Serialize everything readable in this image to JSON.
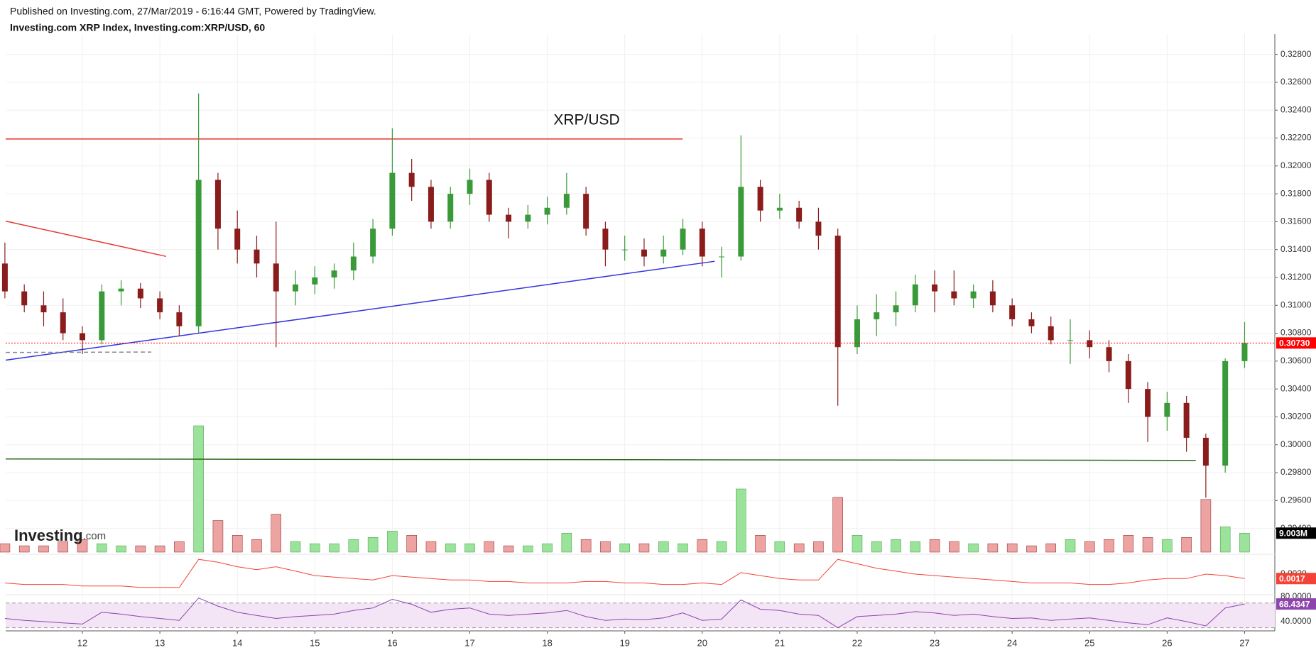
{
  "chart_data": {
    "type": "candlestick",
    "published": "Published on Investing.com, 27/Mar/2019 - 6:16:44 GMT, Powered by TradingView.",
    "title": "Investing.com XRP Index, Investing.com:XRP/USD, 60",
    "annotation": "XRP/USD",
    "watermark": {
      "name": "Investing",
      "suffix": ".com"
    },
    "x": [
      11.0,
      11.25,
      11.5,
      11.75,
      12.0,
      12.25,
      12.5,
      12.75,
      13.0,
      13.25,
      13.5,
      13.75,
      14.0,
      14.25,
      14.5,
      14.75,
      15.0,
      15.25,
      15.5,
      15.75,
      16.0,
      16.25,
      16.5,
      16.75,
      17.0,
      17.25,
      17.5,
      17.75,
      18.0,
      18.25,
      18.5,
      18.75,
      19.0,
      19.25,
      19.5,
      19.75,
      20.0,
      20.25,
      20.5,
      20.75,
      21.0,
      21.25,
      21.5,
      21.75,
      22.0,
      22.25,
      22.5,
      22.75,
      23.0,
      23.25,
      23.5,
      23.75,
      24.0,
      24.25,
      24.5,
      24.75,
      25.0,
      25.25,
      25.5,
      25.75,
      26.0,
      26.25,
      26.5,
      26.75,
      27.0
    ],
    "open": [
      0.313,
      0.311,
      0.31,
      0.3095,
      0.308,
      0.3075,
      0.311,
      0.3112,
      0.3105,
      0.3095,
      0.3085,
      0.319,
      0.3155,
      0.314,
      0.313,
      0.311,
      0.3115,
      0.312,
      0.3125,
      0.3135,
      0.3155,
      0.3195,
      0.3185,
      0.316,
      0.318,
      0.319,
      0.3165,
      0.316,
      0.3165,
      0.317,
      0.318,
      0.3155,
      0.314,
      0.314,
      0.3135,
      0.314,
      0.3155,
      0.3135,
      0.3135,
      0.3185,
      0.3168,
      0.317,
      0.316,
      0.315,
      0.307,
      0.309,
      0.3095,
      0.31,
      0.3115,
      0.311,
      0.3105,
      0.311,
      0.31,
      0.309,
      0.3085,
      0.3075,
      0.3075,
      0.307,
      0.306,
      0.304,
      0.302,
      0.303,
      0.3005,
      0.2985,
      0.306
    ],
    "high": [
      0.3145,
      0.3115,
      0.311,
      0.3105,
      0.3085,
      0.3115,
      0.3118,
      0.3116,
      0.311,
      0.31,
      0.3252,
      0.3195,
      0.3168,
      0.315,
      0.316,
      0.3125,
      0.3128,
      0.313,
      0.3145,
      0.3162,
      0.3227,
      0.3205,
      0.319,
      0.3185,
      0.3198,
      0.3195,
      0.317,
      0.3172,
      0.3178,
      0.3195,
      0.3185,
      0.316,
      0.315,
      0.3148,
      0.315,
      0.3162,
      0.316,
      0.3142,
      0.3222,
      0.319,
      0.318,
      0.3175,
      0.317,
      0.3155,
      0.31,
      0.3108,
      0.311,
      0.3122,
      0.3125,
      0.3125,
      0.3115,
      0.3118,
      0.3105,
      0.3095,
      0.3092,
      0.309,
      0.3082,
      0.3075,
      0.3065,
      0.3045,
      0.3038,
      0.3035,
      0.3008,
      0.3062,
      0.3088
    ],
    "low": [
      0.3105,
      0.3095,
      0.3085,
      0.3075,
      0.3065,
      0.3072,
      0.31,
      0.3098,
      0.309,
      0.3078,
      0.308,
      0.314,
      0.313,
      0.312,
      0.307,
      0.31,
      0.3108,
      0.3112,
      0.3118,
      0.313,
      0.315,
      0.3175,
      0.3155,
      0.3155,
      0.3172,
      0.316,
      0.3148,
      0.3155,
      0.3158,
      0.3165,
      0.315,
      0.3128,
      0.3132,
      0.3128,
      0.313,
      0.3136,
      0.3128,
      0.312,
      0.3132,
      0.316,
      0.3162,
      0.3155,
      0.314,
      0.3028,
      0.3065,
      0.3078,
      0.3085,
      0.3095,
      0.3095,
      0.31,
      0.3098,
      0.3095,
      0.3085,
      0.308,
      0.3072,
      0.3058,
      0.3062,
      0.3052,
      0.303,
      0.3002,
      0.301,
      0.2995,
      0.2962,
      0.298,
      0.3055
    ],
    "close": [
      0.311,
      0.31,
      0.3095,
      0.308,
      0.3075,
      0.311,
      0.3112,
      0.3105,
      0.3095,
      0.3085,
      0.319,
      0.3155,
      0.314,
      0.313,
      0.311,
      0.3115,
      0.312,
      0.3125,
      0.3135,
      0.3155,
      0.3195,
      0.3185,
      0.316,
      0.318,
      0.319,
      0.3165,
      0.316,
      0.3165,
      0.317,
      0.318,
      0.3155,
      0.314,
      0.314,
      0.3135,
      0.314,
      0.3155,
      0.3135,
      0.3135,
      0.3185,
      0.3168,
      0.317,
      0.316,
      0.315,
      0.307,
      0.309,
      0.3095,
      0.31,
      0.3115,
      0.311,
      0.3105,
      0.311,
      0.31,
      0.309,
      0.3085,
      0.3075,
      0.3075,
      0.307,
      0.306,
      0.304,
      0.302,
      0.303,
      0.3005,
      0.2985,
      0.306,
      0.3073
    ],
    "up_color": "#3a9a3a",
    "down_color": "#8b1c1c",
    "xlim": [
      11.01,
      27.39
    ],
    "xticks": [
      12,
      13,
      14,
      15,
      16,
      17,
      18,
      19,
      20,
      21,
      22,
      23,
      24,
      25,
      26,
      27
    ],
    "ylim": [
      0.2923,
      0.329
    ],
    "yticks": [
      {
        "value": 0.294,
        "label": "0.29400"
      },
      {
        "value": 0.296,
        "label": "0.29600"
      },
      {
        "value": 0.298,
        "label": "0.29800"
      },
      {
        "value": 0.3,
        "label": "0.30000"
      },
      {
        "value": 0.302,
        "label": "0.30200"
      },
      {
        "value": 0.304,
        "label": "0.30400"
      },
      {
        "value": 0.306,
        "label": "0.30600"
      },
      {
        "value": 0.308,
        "label": "0.30800"
      },
      {
        "value": 0.31,
        "label": "0.31000"
      },
      {
        "value": 0.312,
        "label": "0.31200"
      },
      {
        "value": 0.314,
        "label": "0.31400"
      },
      {
        "value": 0.316,
        "label": "0.31600"
      },
      {
        "value": 0.318,
        "label": "0.31800"
      },
      {
        "value": 0.32,
        "label": "0.32000"
      },
      {
        "value": 0.322,
        "label": "0.32200"
      },
      {
        "value": 0.324,
        "label": "0.32400"
      },
      {
        "value": 0.326,
        "label": "0.32600"
      },
      {
        "value": 0.328,
        "label": "0.32800"
      }
    ],
    "grid": true,
    "last_price": {
      "value": 0.3073,
      "label": "0.30730",
      "color": "#ff0000"
    },
    "drawings": [
      {
        "color": "#e53935",
        "x": [
          11.01,
          19.745
        ],
        "y": [
          0.32193,
          0.32193
        ]
      },
      {
        "color": "#e53935",
        "x": [
          11.01,
          13.08
        ],
        "y": [
          0.31604,
          0.31351
        ]
      },
      {
        "color": "#3333dd",
        "x": [
          11.01,
          20.16
        ],
        "y": [
          0.30607,
          0.31316
        ]
      },
      {
        "color": "#2e6b1e",
        "x": [
          11.01,
          26.37
        ],
        "y": [
          0.29898,
          0.29888
        ]
      },
      {
        "color": "#888888",
        "dashed": true,
        "x": [
          11.01,
          12.89
        ],
        "y": [
          0.30662,
          0.30665
        ]
      }
    ],
    "volume": {
      "values": [
        4,
        3,
        3,
        5,
        6,
        4,
        3,
        3,
        3,
        5,
        60,
        15,
        8,
        6,
        18,
        5,
        4,
        4,
        6,
        7,
        10,
        8,
        5,
        4,
        4,
        5,
        3,
        3,
        4,
        9,
        6,
        5,
        4,
        4,
        5,
        4,
        6,
        5,
        30,
        8,
        5,
        4,
        5,
        26,
        8,
        5,
        6,
        5,
        6,
        5,
        4,
        4,
        4,
        3,
        4,
        6,
        5,
        6,
        8,
        7,
        6,
        7,
        25,
        12,
        9.003
      ],
      "ylim": [
        0,
        60
      ],
      "up_color": "#9be39b",
      "down_color": "#eea3a3",
      "last": {
        "value": 9.003,
        "label": "9.003M",
        "color": "#000000"
      }
    },
    "indicator": {
      "values": [
        0.0014,
        0.0013,
        0.0013,
        0.0013,
        0.0012,
        0.0012,
        0.0012,
        0.0011,
        0.0011,
        0.0011,
        0.003,
        0.0028,
        0.0025,
        0.0023,
        0.0025,
        0.0022,
        0.0019,
        0.0018,
        0.0017,
        0.0016,
        0.0019,
        0.0018,
        0.0017,
        0.0016,
        0.0016,
        0.0015,
        0.0015,
        0.0014,
        0.0014,
        0.0014,
        0.0015,
        0.0015,
        0.0014,
        0.0014,
        0.0013,
        0.0013,
        0.0014,
        0.0013,
        0.0021,
        0.0019,
        0.0017,
        0.0016,
        0.0016,
        0.003,
        0.0027,
        0.0024,
        0.0022,
        0.002,
        0.0019,
        0.0018,
        0.0017,
        0.0016,
        0.0015,
        0.0014,
        0.0014,
        0.0014,
        0.0013,
        0.0013,
        0.0014,
        0.0016,
        0.0017,
        0.0017,
        0.002,
        0.0019,
        0.0017
      ],
      "color": "#f44336",
      "ylim": [
        0.0008,
        0.0032
      ],
      "yticks": [
        {
          "value": 0.002,
          "label": "0.0020"
        }
      ],
      "last": {
        "value": 0.0017,
        "label": "0.0017",
        "color": "#f44336"
      }
    },
    "rsi": {
      "values": [
        45,
        42,
        40,
        38,
        36,
        55,
        52,
        48,
        45,
        42,
        78,
        65,
        55,
        50,
        45,
        48,
        50,
        52,
        58,
        62,
        76,
        68,
        55,
        60,
        62,
        52,
        50,
        52,
        54,
        58,
        48,
        42,
        44,
        43,
        46,
        54,
        42,
        44,
        75,
        60,
        58,
        52,
        50,
        30,
        48,
        50,
        52,
        56,
        54,
        50,
        52,
        48,
        45,
        46,
        42,
        44,
        46,
        42,
        38,
        35,
        46,
        40,
        33,
        62,
        68.4347
      ],
      "color": "#8e44ad",
      "band_color": "#f3e5f5",
      "ylim": [
        25,
        80
      ],
      "band": [
        30,
        70
      ],
      "yticks": [
        {
          "value": 40,
          "label": "40.0000"
        },
        {
          "value": 80,
          "label": "80.0000"
        }
      ],
      "last": {
        "value": 68.4347,
        "label": "68.4347",
        "color": "#8e44ad"
      }
    }
  }
}
